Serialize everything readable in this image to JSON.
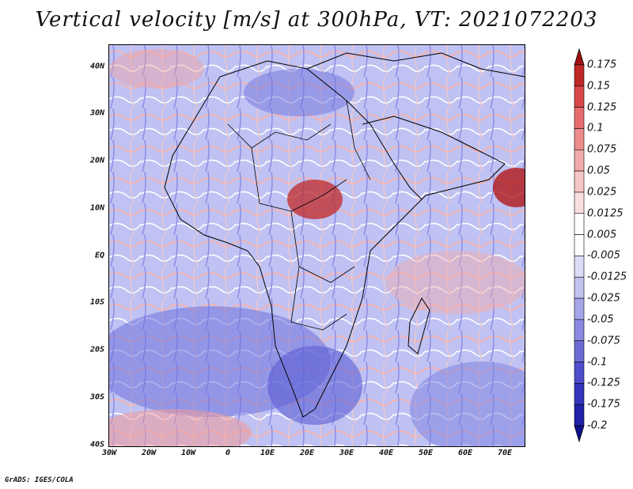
{
  "title": "Vertical velocity [m/s] at 300hPa, VT: 2021072203",
  "credit": "GrADS: IGES/COLA",
  "map": {
    "region": "Africa",
    "lat_labels": [
      "40N",
      "30N",
      "20N",
      "10N",
      "EQ",
      "10S",
      "20S",
      "30S",
      "40S"
    ],
    "lon_labels": [
      "30W",
      "20W",
      "10W",
      "0",
      "10E",
      "20E",
      "30E",
      "40E",
      "50E",
      "60E",
      "70E"
    ]
  },
  "colorbar": {
    "levels": [
      "0.175",
      "0.15",
      "0.125",
      "0.1",
      "0.075",
      "0.05",
      "0.025",
      "0.0125",
      "0.005",
      "-0.005",
      "-0.0125",
      "-0.025",
      "-0.05",
      "-0.075",
      "-0.1",
      "-0.125",
      "-0.175",
      "-0.2"
    ],
    "colors": [
      "#a01010",
      "#c02828",
      "#d84848",
      "#e86c6c",
      "#ee8c8c",
      "#f3aaaa",
      "#f7c6c6",
      "#fadede",
      "#ffffff",
      "#ffffff",
      "#dcdcf6",
      "#c2c2f0",
      "#a6a6ea",
      "#8a8ae2",
      "#6c6cd8",
      "#4e4ecc",
      "#3434bc",
      "#2020a8",
      "#10108a"
    ]
  }
}
